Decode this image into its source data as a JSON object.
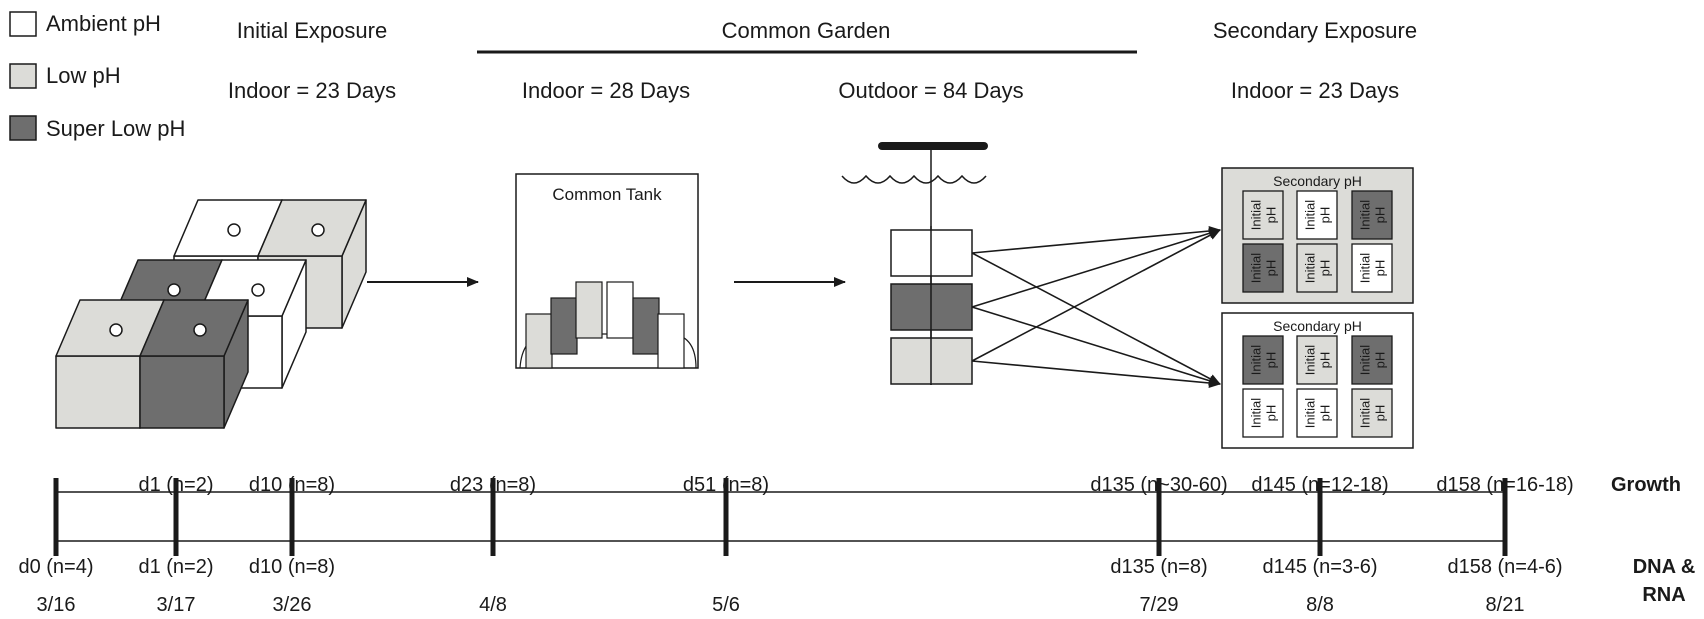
{
  "colors": {
    "ambient": "#ffffff",
    "low": "#dcdcd8",
    "super_low": "#6e6e6e",
    "stroke": "#1a1a1a"
  },
  "legend": {
    "ambient": "Ambient pH",
    "low": "Low pH",
    "super_low": "Super Low pH"
  },
  "phases": {
    "initial_title": "Initial Exposure",
    "initial_duration": "Indoor = 23 Days",
    "common_title": "Common Garden",
    "common_indoor": "Indoor = 28 Days",
    "common_outdoor": "Outdoor = 84 Days",
    "secondary_title": "Secondary Exposure",
    "secondary_duration": "Indoor = 23 Days"
  },
  "common_tank_label": "Common Tank",
  "secondary_tanks": [
    {
      "label": "Secondary pH",
      "color": "low",
      "cells": [
        {
          "line1": "Initial",
          "line2": "pH",
          "color": "low"
        },
        {
          "line1": "Initial",
          "line2": "pH",
          "color": "ambient"
        },
        {
          "line1": "Initial",
          "line2": "pH",
          "color": "super_low"
        },
        {
          "line1": "Initial",
          "line2": "pH",
          "color": "super_low"
        },
        {
          "line1": "Initial",
          "line2": "pH",
          "color": "low"
        },
        {
          "line1": "Initial",
          "line2": "pH",
          "color": "ambient"
        }
      ]
    },
    {
      "label": "Secondary pH",
      "color": "ambient",
      "cells": [
        {
          "line1": "Initial",
          "line2": "pH",
          "color": "super_low"
        },
        {
          "line1": "Initial",
          "line2": "pH",
          "color": "low"
        },
        {
          "line1": "Initial",
          "line2": "pH",
          "color": "super_low"
        },
        {
          "line1": "Initial",
          "line2": "pH",
          "color": "ambient"
        },
        {
          "line1": "Initial",
          "line2": "pH",
          "color": "ambient"
        },
        {
          "line1": "Initial",
          "line2": "pH",
          "color": "low"
        }
      ]
    }
  ],
  "timeline": {
    "growth_label": "Growth",
    "dna_label_line1": "DNA &",
    "dna_label_line2": "RNA",
    "growth": [
      "d1 (n=2)",
      "d10 (n=8)",
      "d23 (n=8)",
      "d51 (n=8)",
      "d135 (n~30-60)",
      "d145 (n=12-18)",
      "d158 (n=16-18)"
    ],
    "dna": [
      "d0 (n=4)",
      "d1 (n=2)",
      "d10 (n=8)",
      "d135 (n=8)",
      "d145 (n=3-6)",
      "d158 (n=4-6)"
    ],
    "dates": [
      "3/16",
      "3/17",
      "3/26",
      "4/8",
      "5/6",
      "7/29",
      "8/8",
      "8/21"
    ]
  }
}
